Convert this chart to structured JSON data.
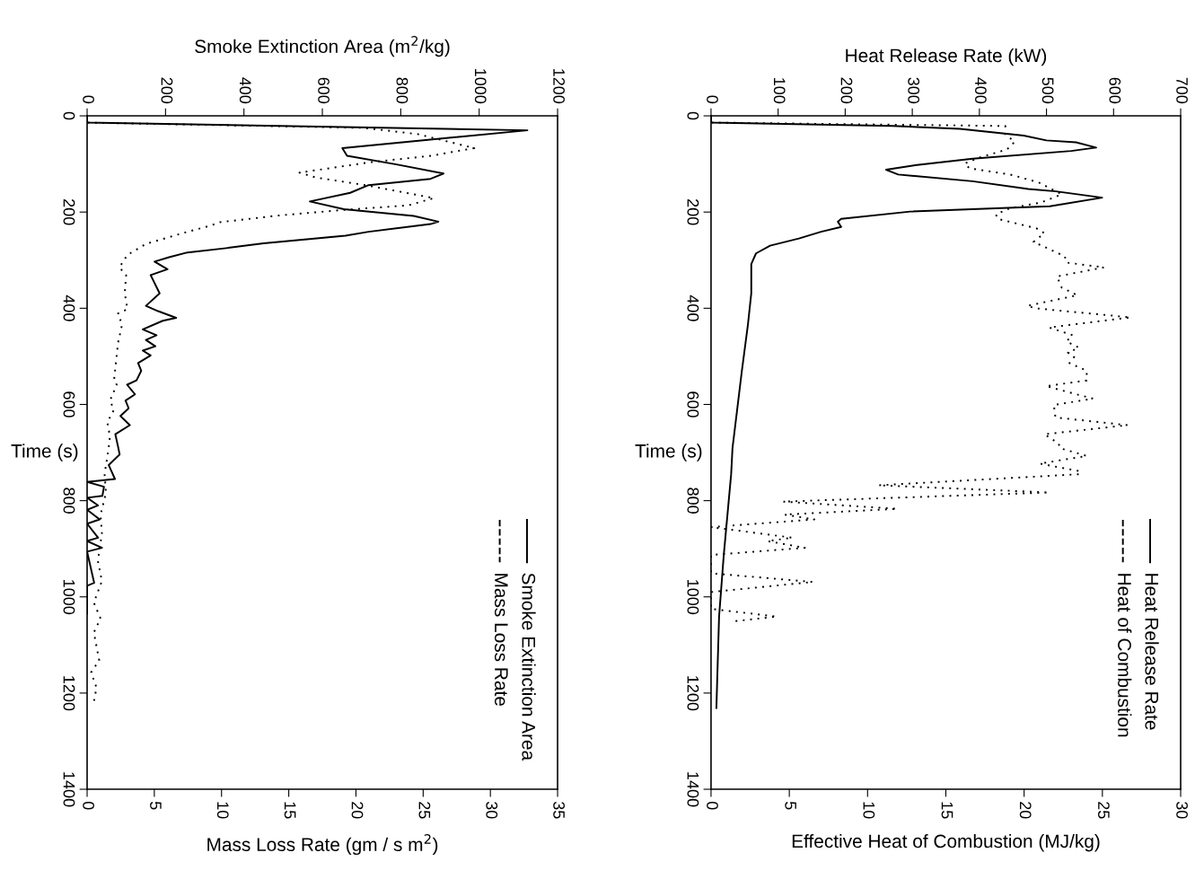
{
  "chart_data": [
    {
      "type": "line",
      "orientation": "horizontal",
      "xlabel": "Mass Loss Rate (gm / s m$^{2}$)",
      "x2label": "Smoke Extinction Area (m$^{2}$/kg)",
      "ylabel": "Time (s)",
      "xlim": [
        0,
        35
      ],
      "xticks": [
        0,
        5,
        10,
        15,
        20,
        25,
        30,
        35
      ],
      "x2lim": [
        0,
        1200
      ],
      "x2ticks": [
        0,
        200,
        400,
        600,
        800,
        1000,
        1200
      ],
      "ylim": [
        1400,
        0
      ],
      "yticks": [
        0,
        200,
        400,
        600,
        800,
        1000,
        1200,
        1400
      ],
      "legend": "bottom right",
      "grid": false,
      "series": [
        {
          "name": "Smoke Extinction Area",
          "color": "#000000",
          "axis": "x2",
          "line_style": "solid",
          "x": [
            0,
            14,
            30,
            67,
            83,
            101,
            120,
            131,
            144,
            160,
            178,
            194,
            208,
            220,
            225,
            241,
            249,
            265,
            275,
            284,
            294,
            303,
            319,
            331,
            369,
            395,
            406,
            420,
            426,
            444,
            456,
            466,
            479,
            488,
            498,
            514,
            530,
            550,
            559,
            579,
            592,
            608,
            624,
            643,
            662,
            688,
            704,
            726,
            755,
            761,
            771,
            790,
            794,
            810,
            819,
            839,
            848,
            877,
            884,
            898,
            906,
            971,
            977,
            1035
          ],
          "values": [
            0,
            0,
            1123,
            651,
            663,
            789,
            909,
            876,
            718,
            671,
            568,
            655,
            833,
            896,
            876,
            718,
            659,
            450,
            355,
            256,
            209,
            172,
            205,
            162,
            185,
            150,
            181,
            227,
            193,
            142,
            177,
            150,
            174,
            142,
            162,
            130,
            138,
            126,
            102,
            122,
            98,
            106,
            85,
            109,
            72,
            79,
            83,
            55,
            71,
            0,
            43,
            39,
            0,
            28,
            0,
            32,
            0,
            28,
            0,
            38,
            0,
            18,
            0,
            0
          ]
        },
        {
          "name": "Mass Loss Rate",
          "color": "#000000",
          "line_style": "dotted",
          "x": [
            0,
            14,
            25,
            38,
            67,
            83,
            96,
            118,
            128,
            144,
            171,
            186,
            196,
            207,
            221,
            228,
            244,
            266,
            289,
            315,
            331,
            369,
            402,
            411,
            434,
            472,
            550,
            559,
            592,
            611,
            637,
            666,
            691,
            745,
            784,
            829,
            868,
            925,
            967,
            1012,
            1045,
            1074,
            1132,
            1157,
            1189,
            1218
          ],
          "values": [
            0,
            0,
            20.6,
            24.6,
            28.8,
            25.6,
            21.2,
            15.8,
            17.0,
            20.7,
            25.8,
            23.9,
            18.9,
            14.3,
            9.9,
            9.2,
            7.1,
            4.4,
            3.0,
            2.4,
            2.9,
            2.8,
            3.0,
            2.3,
            2.6,
            2.3,
            2.0,
            2.2,
            1.7,
            2.0,
            1.5,
            1.7,
            1.6,
            1.3,
            1.4,
            1.0,
            1.1,
            0.8,
            1.1,
            0.5,
            1.0,
            0.5,
            0.9,
            0.3,
            0.7,
            0.5
          ]
        }
      ]
    },
    {
      "type": "line",
      "orientation": "horizontal",
      "xlabel": "Effective Heat of Combustion (MJ/kg)",
      "x2label": "Heat Release Rate (kW)",
      "ylabel": "Time (s)",
      "xlim": [
        0,
        30
      ],
      "xticks": [
        0,
        5,
        10,
        15,
        20,
        25,
        30
      ],
      "x2lim": [
        0,
        700
      ],
      "x2ticks": [
        0,
        100,
        200,
        300,
        400,
        500,
        600,
        700
      ],
      "ylim": [
        1400,
        0
      ],
      "yticks": [
        0,
        200,
        400,
        600,
        800,
        1000,
        1200,
        1400
      ],
      "legend": "bottom right",
      "grid": false,
      "series": [
        {
          "name": "Heat Release Rate",
          "color": "#000000",
          "axis": "x2",
          "line_style": "solid",
          "x": [
            0,
            14,
            21,
            27,
            41,
            51,
            55,
            66,
            73,
            89,
            102,
            112,
            122,
            136,
            152,
            157,
            170,
            188,
            199,
            214,
            220,
            231,
            241,
            255,
            270,
            286,
            308,
            369,
            434,
            530,
            691,
            745,
            913,
            1041,
            1231
          ],
          "values": [
            0,
            0,
            270,
            371,
            466,
            500,
            544,
            574,
            537,
            390,
            307,
            261,
            279,
            390,
            473,
            514,
            583,
            505,
            297,
            194,
            189,
            194,
            164,
            131,
            88,
            67,
            60,
            60,
            55,
            46,
            32,
            30,
            19,
            12,
            8
          ]
        },
        {
          "name": "Heat of Combustion",
          "color": "#000000",
          "line_style": "dotted",
          "x": [
            0,
            14,
            21,
            38,
            54,
            70,
            86,
            99,
            109,
            122,
            138,
            163,
            180,
            192,
            205,
            214,
            234,
            244,
            262,
            292,
            305,
            315,
            334,
            357,
            373,
            395,
            400,
            419,
            440,
            456,
            469,
            482,
            492,
            501,
            514,
            530,
            550,
            562,
            588,
            601,
            627,
            643,
            662,
            681,
            691,
            707,
            723,
            739,
            745,
            768,
            783,
            802,
            817,
            829,
            839,
            855,
            877,
            884,
            898,
            913,
            951,
            969,
            990,
            1025,
            1041,
            1051
          ],
          "values": [
            0,
            0,
            18.8,
            18.8,
            19.4,
            18.9,
            17.2,
            16.2,
            16.5,
            19.1,
            20.9,
            22.4,
            21.1,
            19.1,
            18.2,
            18.3,
            20.8,
            21.3,
            20.6,
            22.6,
            22.7,
            25.1,
            22.1,
            22.4,
            23.4,
            20.2,
            20.7,
            26.8,
            21.6,
            23.1,
            22.7,
            23.5,
            22.8,
            23.2,
            22.9,
            24.0,
            24.0,
            21.4,
            24.4,
            21.9,
            22.0,
            26.6,
            21.3,
            22.2,
            22.3,
            24.0,
            21.0,
            23.6,
            23.5,
            10.7,
            21.6,
            4.6,
            11.9,
            4.7,
            6.6,
            0,
            5.2,
            3.6,
            6.0,
            0,
            0,
            6.5,
            0,
            0,
            4.2,
            1.4
          ]
        }
      ]
    }
  ]
}
